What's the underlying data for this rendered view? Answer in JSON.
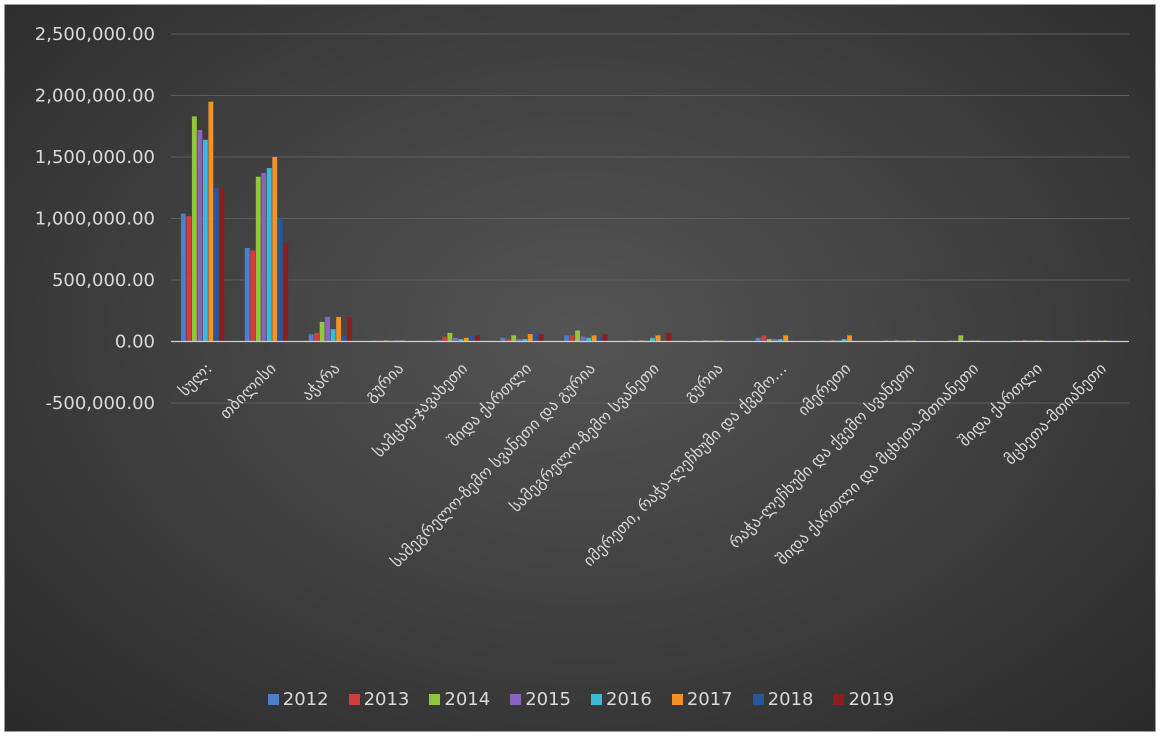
{
  "chart_data": {
    "type": "bar",
    "title": "",
    "xlabel": "",
    "ylabel": "",
    "ylim": [
      -500000,
      2500000
    ],
    "yticks": [
      2500000,
      2000000,
      1500000,
      1000000,
      500000,
      0,
      -500000
    ],
    "ytick_labels": [
      "2,500,000.00",
      "2,000,000.00",
      "1,500,000.00",
      "1,000,000.00",
      "500,000.00",
      "0.00",
      "-500,000.00"
    ],
    "grid": true,
    "legend_position": "bottom",
    "categories": [
      "სულ:",
      "თბილისი",
      "აჭარა",
      "გურია",
      "სამცხე-ჯავახეთი",
      "შიდა ქართლი",
      "სამეგრელო-ზემო სვანეთი და გურია",
      "სამეგრელო-ზემო სვანეთი",
      "გურია",
      "იმერეთი, რაჭა-ლეჩხუმი და ქვემო…",
      "იმერეთი",
      "რაჭა-ლეჩხუმი და ქვემო სვანეთი",
      "შიდა ქართლი და მცხეთა-მთიანეთი",
      "შიდა ქართლი",
      "მცხეთა-მთიანეთი"
    ],
    "series": [
      {
        "name": "2012",
        "color": "#4a7fc9",
        "values": [
          1040000,
          760000,
          60000,
          3000,
          10000,
          30000,
          50000,
          3000,
          2000,
          30000,
          2000,
          2000,
          3000,
          3000,
          3000
        ]
      },
      {
        "name": "2013",
        "color": "#d13c3c",
        "values": [
          1020000,
          740000,
          70000,
          3000,
          40000,
          20000,
          50000,
          3000,
          2000,
          50000,
          2000,
          2000,
          3000,
          3000,
          3000
        ]
      },
      {
        "name": "2014",
        "color": "#92c53e",
        "values": [
          1830000,
          1340000,
          160000,
          3000,
          70000,
          50000,
          90000,
          3000,
          2000,
          20000,
          2000,
          2000,
          50000,
          3000,
          3000
        ]
      },
      {
        "name": "2015",
        "color": "#8a62c0",
        "values": [
          1720000,
          1370000,
          200000,
          3000,
          30000,
          20000,
          40000,
          3000,
          2000,
          20000,
          2000,
          2000,
          3000,
          3000,
          3000
        ]
      },
      {
        "name": "2016",
        "color": "#38bcd8",
        "values": [
          1640000,
          1410000,
          100000,
          3000,
          20000,
          20000,
          30000,
          30000,
          2000,
          20000,
          20000,
          2000,
          3000,
          3000,
          3000
        ]
      },
      {
        "name": "2017",
        "color": "#f39226",
        "values": [
          1950000,
          1500000,
          200000,
          3000,
          30000,
          60000,
          50000,
          50000,
          2000,
          50000,
          50000,
          2000,
          3000,
          3000,
          3000
        ]
      },
      {
        "name": "2018",
        "color": "#27569a",
        "values": [
          1250000,
          1010000,
          50000,
          3000,
          50000,
          70000,
          30000,
          3000,
          2000,
          10000,
          2000,
          2000,
          3000,
          3000,
          3000
        ]
      },
      {
        "name": "2019",
        "color": "#8b1f1f",
        "values": [
          1250000,
          800000,
          200000,
          3000,
          50000,
          60000,
          60000,
          70000,
          2000,
          10000,
          2000,
          2000,
          3000,
          3000,
          3000
        ]
      }
    ]
  }
}
